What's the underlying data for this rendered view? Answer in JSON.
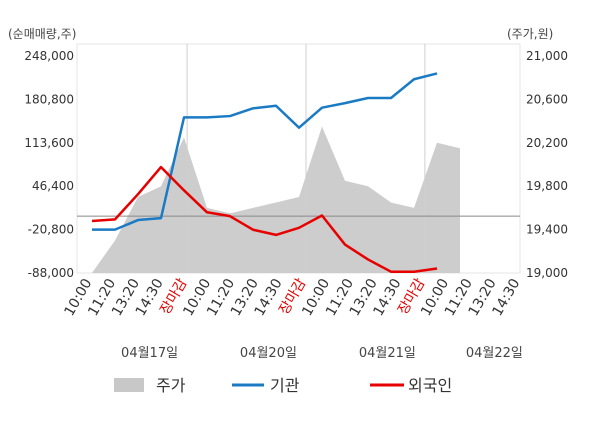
{
  "chart_data": {
    "type": "line",
    "left_axis_title": "(순매매량,주)",
    "right_axis_title": "(주가,원)",
    "left_ticks": [
      "248,000",
      "180,800",
      "113,600",
      "46,400",
      "-20,800",
      "-88,000"
    ],
    "right_ticks": [
      "21,000",
      "20,600",
      "20,200",
      "19,800",
      "19,400",
      "19,000"
    ],
    "ylim_left": [
      -88000,
      248000
    ],
    "ylim_right": [
      19000,
      21000
    ],
    "x_tick_labels": [
      "10:00",
      "11:20",
      "13:20",
      "14:30",
      "장마감",
      "10:00",
      "11:20",
      "13:20",
      "14:30",
      "장마감",
      "10:00",
      "11:20",
      "13:20",
      "14:30",
      "장마감",
      "10:00",
      "11:20",
      "13:20",
      "14:30"
    ],
    "close_label": "장마감",
    "date_labels": [
      "04월17일",
      "04월20일",
      "04월21일",
      "04월22일"
    ],
    "x": [
      "04/17 10:00",
      "04/17 11:20",
      "04/17 13:20",
      "04/17 14:30",
      "04/17 장마감",
      "04/20 10:00",
      "04/20 11:20",
      "04/20 13:20",
      "04/20 14:30",
      "04/20 장마감",
      "04/21 10:00",
      "04/21 11:20",
      "04/21 13:20",
      "04/21 14:30",
      "04/21 장마감",
      "04/22 10:00",
      "04/22 11:20"
    ],
    "series": [
      {
        "name": "기관",
        "axis": "left",
        "color": "#1a7bc4",
        "values": [
          -20800,
          -20800,
          -6000,
          -3000,
          153000,
          153000,
          155000,
          167000,
          171000,
          137000,
          168000,
          175000,
          183000,
          183000,
          212000,
          221000,
          null
        ]
      },
      {
        "name": "외국인",
        "axis": "left",
        "color": "#e60000",
        "values": [
          -7500,
          -5000,
          34000,
          76000,
          40000,
          6000,
          0,
          -21000,
          -29000,
          -18000,
          1000,
          -44000,
          -67000,
          -86000,
          -86000,
          -81000,
          null
        ]
      },
      {
        "name": "주가",
        "axis": "right",
        "color": "#c8c8c8",
        "type": "area",
        "values": [
          19000,
          19300,
          19700,
          19800,
          20250,
          19600,
          19550,
          19600,
          19650,
          19700,
          20350,
          19850,
          19800,
          19650,
          19600,
          20200,
          20150
        ]
      }
    ],
    "legend": [
      "주가",
      "기관",
      "외국인"
    ],
    "legend_position": "bottom",
    "grid": false
  }
}
